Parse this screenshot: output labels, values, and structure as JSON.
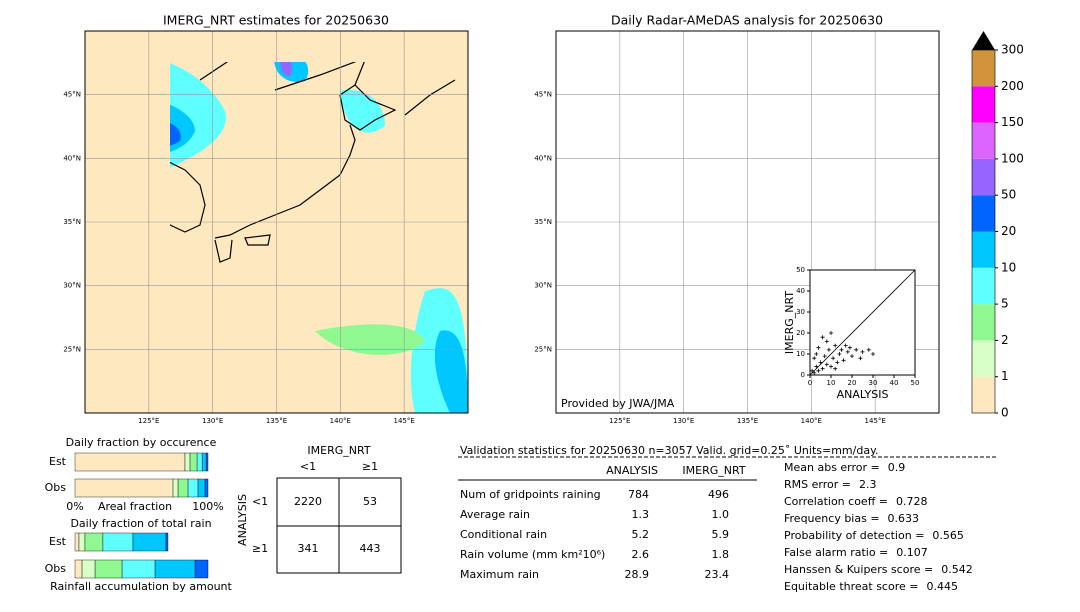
{
  "maps": [
    {
      "title": "IMERG_NRT estimates for 20250630"
    },
    {
      "title": "Daily Radar-AMeDAS analysis for 20250630",
      "credit": "Provided by JWA/JMA"
    }
  ],
  "extent": {
    "lon": [
      120,
      150
    ],
    "lat": [
      20,
      50
    ]
  },
  "lon_ticks": [
    {
      "value": 125,
      "label": "125°E"
    },
    {
      "value": 130,
      "label": "130°E"
    },
    {
      "value": 135,
      "label": "135°E"
    },
    {
      "value": 140,
      "label": "140°E"
    },
    {
      "value": 145,
      "label": "145°E"
    }
  ],
  "lat_ticks": [
    {
      "value": 25,
      "label": "25°N"
    },
    {
      "value": 30,
      "label": "30°N"
    },
    {
      "value": 35,
      "label": "35°N"
    },
    {
      "value": 40,
      "label": "40°N"
    },
    {
      "value": 45,
      "label": "45°N"
    }
  ],
  "colorbar": {
    "levels": [
      0,
      1,
      2,
      5,
      10,
      20,
      50,
      100,
      150,
      200,
      300
    ],
    "colors": [
      "#fde8c0",
      "#d8ffc8",
      "#90f890",
      "#60ffff",
      "#00c8ff",
      "#0064ff",
      "#9664ff",
      "#dc64ff",
      "#ff00ff",
      "#d0953c"
    ],
    "extend_color": "#000000"
  },
  "scatter": {
    "xlabel": "ANALYSIS",
    "ylabel": "IMERG_NRT",
    "xlim": [
      0,
      50
    ],
    "ylim": [
      0,
      50
    ],
    "ticks": [
      0,
      10,
      20,
      30,
      40,
      50
    ],
    "points": [
      [
        1,
        2
      ],
      [
        2,
        1
      ],
      [
        3,
        4
      ],
      [
        4,
        2
      ],
      [
        5,
        6
      ],
      [
        2,
        8
      ],
      [
        6,
        3
      ],
      [
        7,
        9
      ],
      [
        8,
        5
      ],
      [
        9,
        12
      ],
      [
        10,
        4
      ],
      [
        11,
        8
      ],
      [
        12,
        14
      ],
      [
        13,
        6
      ],
      [
        14,
        10
      ],
      [
        15,
        12
      ],
      [
        16,
        7
      ],
      [
        18,
        11
      ],
      [
        19,
        13
      ],
      [
        20,
        9
      ],
      [
        22,
        12
      ],
      [
        24,
        8
      ],
      [
        28,
        12
      ],
      [
        30,
        10
      ],
      [
        6,
        18
      ],
      [
        8,
        16
      ],
      [
        10,
        20
      ],
      [
        4,
        13
      ],
      [
        12,
        3
      ],
      [
        3,
        10
      ],
      [
        17,
        14
      ],
      [
        25,
        11
      ]
    ]
  },
  "occurrence": {
    "title": "Daily fraction by occurence",
    "xlabel": "Areal fraction",
    "ticks": [
      {
        "value": 0,
        "label": "0%"
      },
      {
        "value": 100,
        "label": "100%"
      }
    ],
    "rows": [
      {
        "name": "Est",
        "values": [
          82.7,
          3.8,
          5.3,
          3.8,
          3.0,
          1.4
        ]
      },
      {
        "name": "Obs",
        "values": [
          73.7,
          3.8,
          7.5,
          7.5,
          5.3,
          2.2
        ]
      }
    ]
  },
  "total_rain": {
    "title": "Daily fraction of total rain",
    "xlabel": "Rainfall accumulation by amount",
    "rows": [
      {
        "name": "Est",
        "values": [
          3.0,
          4.5,
          13.5,
          22.6,
          24.8,
          1.5
        ]
      },
      {
        "name": "Obs",
        "values": [
          5.3,
          9.8,
          20.3,
          24.8,
          30.1,
          9.7
        ]
      }
    ]
  },
  "contingency": {
    "title": "IMERG_NRT",
    "row_title": "ANALYSIS",
    "cols": [
      "<1",
      "≥1"
    ],
    "rows": [
      "<1",
      "≥1"
    ],
    "cells": [
      [
        2220,
        53
      ],
      [
        341,
        443
      ]
    ]
  },
  "stats": {
    "header": "Validation statistics for 20250630  n=3057 Valid. grid=0.25˚ Units=mm/day.",
    "columns": [
      "ANALYSIS",
      "IMERG_NRT"
    ],
    "rows": [
      {
        "label": "Num of gridpoints raining",
        "values": [
          "784",
          "496"
        ]
      },
      {
        "label": "Average rain",
        "values": [
          "1.3",
          "1.0"
        ]
      },
      {
        "label": "Conditional rain",
        "values": [
          "5.2",
          "5.9"
        ]
      },
      {
        "label": "Rain volume (mm km²10⁶)",
        "values": [
          "2.6",
          "1.8"
        ]
      },
      {
        "label": "Maximum rain",
        "values": [
          "28.9",
          "23.4"
        ]
      }
    ],
    "scores": [
      {
        "label": "Mean abs error =",
        "value": 0.9
      },
      {
        "label": "RMS error =",
        "value": 2.3
      },
      {
        "label": "Correlation coeff =",
        "value": 0.728
      },
      {
        "label": "Frequency bias =",
        "value": 0.633
      },
      {
        "label": "Probability of detection =",
        "value": 0.565
      },
      {
        "label": "False alarm ratio =",
        "value": 0.107
      },
      {
        "label": "Hanssen & Kuipers score =",
        "value": 0.542
      },
      {
        "label": "Equitable threat score =",
        "value": 0.445
      }
    ]
  }
}
